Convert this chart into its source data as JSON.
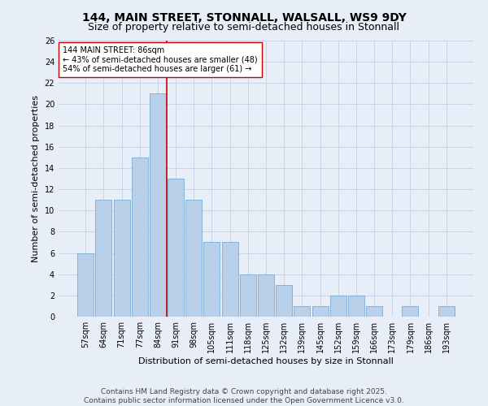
{
  "title1": "144, MAIN STREET, STONNALL, WALSALL, WS9 9DY",
  "title2": "Size of property relative to semi-detached houses in Stonnall",
  "xlabel": "Distribution of semi-detached houses by size in Stonnall",
  "ylabel": "Number of semi-detached properties",
  "categories": [
    "57sqm",
    "64sqm",
    "71sqm",
    "77sqm",
    "84sqm",
    "91sqm",
    "98sqm",
    "105sqm",
    "111sqm",
    "118sqm",
    "125sqm",
    "132sqm",
    "139sqm",
    "145sqm",
    "152sqm",
    "159sqm",
    "166sqm",
    "173sqm",
    "179sqm",
    "186sqm",
    "193sqm"
  ],
  "values": [
    6,
    11,
    11,
    15,
    21,
    13,
    11,
    7,
    7,
    4,
    4,
    3,
    1,
    1,
    2,
    2,
    1,
    0,
    1,
    0,
    1
  ],
  "bar_color": "#b8d0ea",
  "bar_edge_color": "#7aadd4",
  "vline_color": "#cc0000",
  "vline_x": 4.5,
  "annotation_text": "144 MAIN STREET: 86sqm\n← 43% of semi-detached houses are smaller (48)\n54% of semi-detached houses are larger (61) →",
  "annotation_box_color": "#ffffff",
  "annotation_box_edge": "#cc0000",
  "ylim": [
    0,
    26
  ],
  "yticks": [
    0,
    2,
    4,
    6,
    8,
    10,
    12,
    14,
    16,
    18,
    20,
    22,
    24,
    26
  ],
  "grid_color": "#c8d4e8",
  "background_color": "#e8eef8",
  "footer": "Contains HM Land Registry data © Crown copyright and database right 2025.\nContains public sector information licensed under the Open Government Licence v3.0.",
  "title_fontsize": 10,
  "subtitle_fontsize": 9,
  "axis_label_fontsize": 8,
  "tick_fontsize": 7,
  "annotation_fontsize": 7,
  "footer_fontsize": 6.5
}
